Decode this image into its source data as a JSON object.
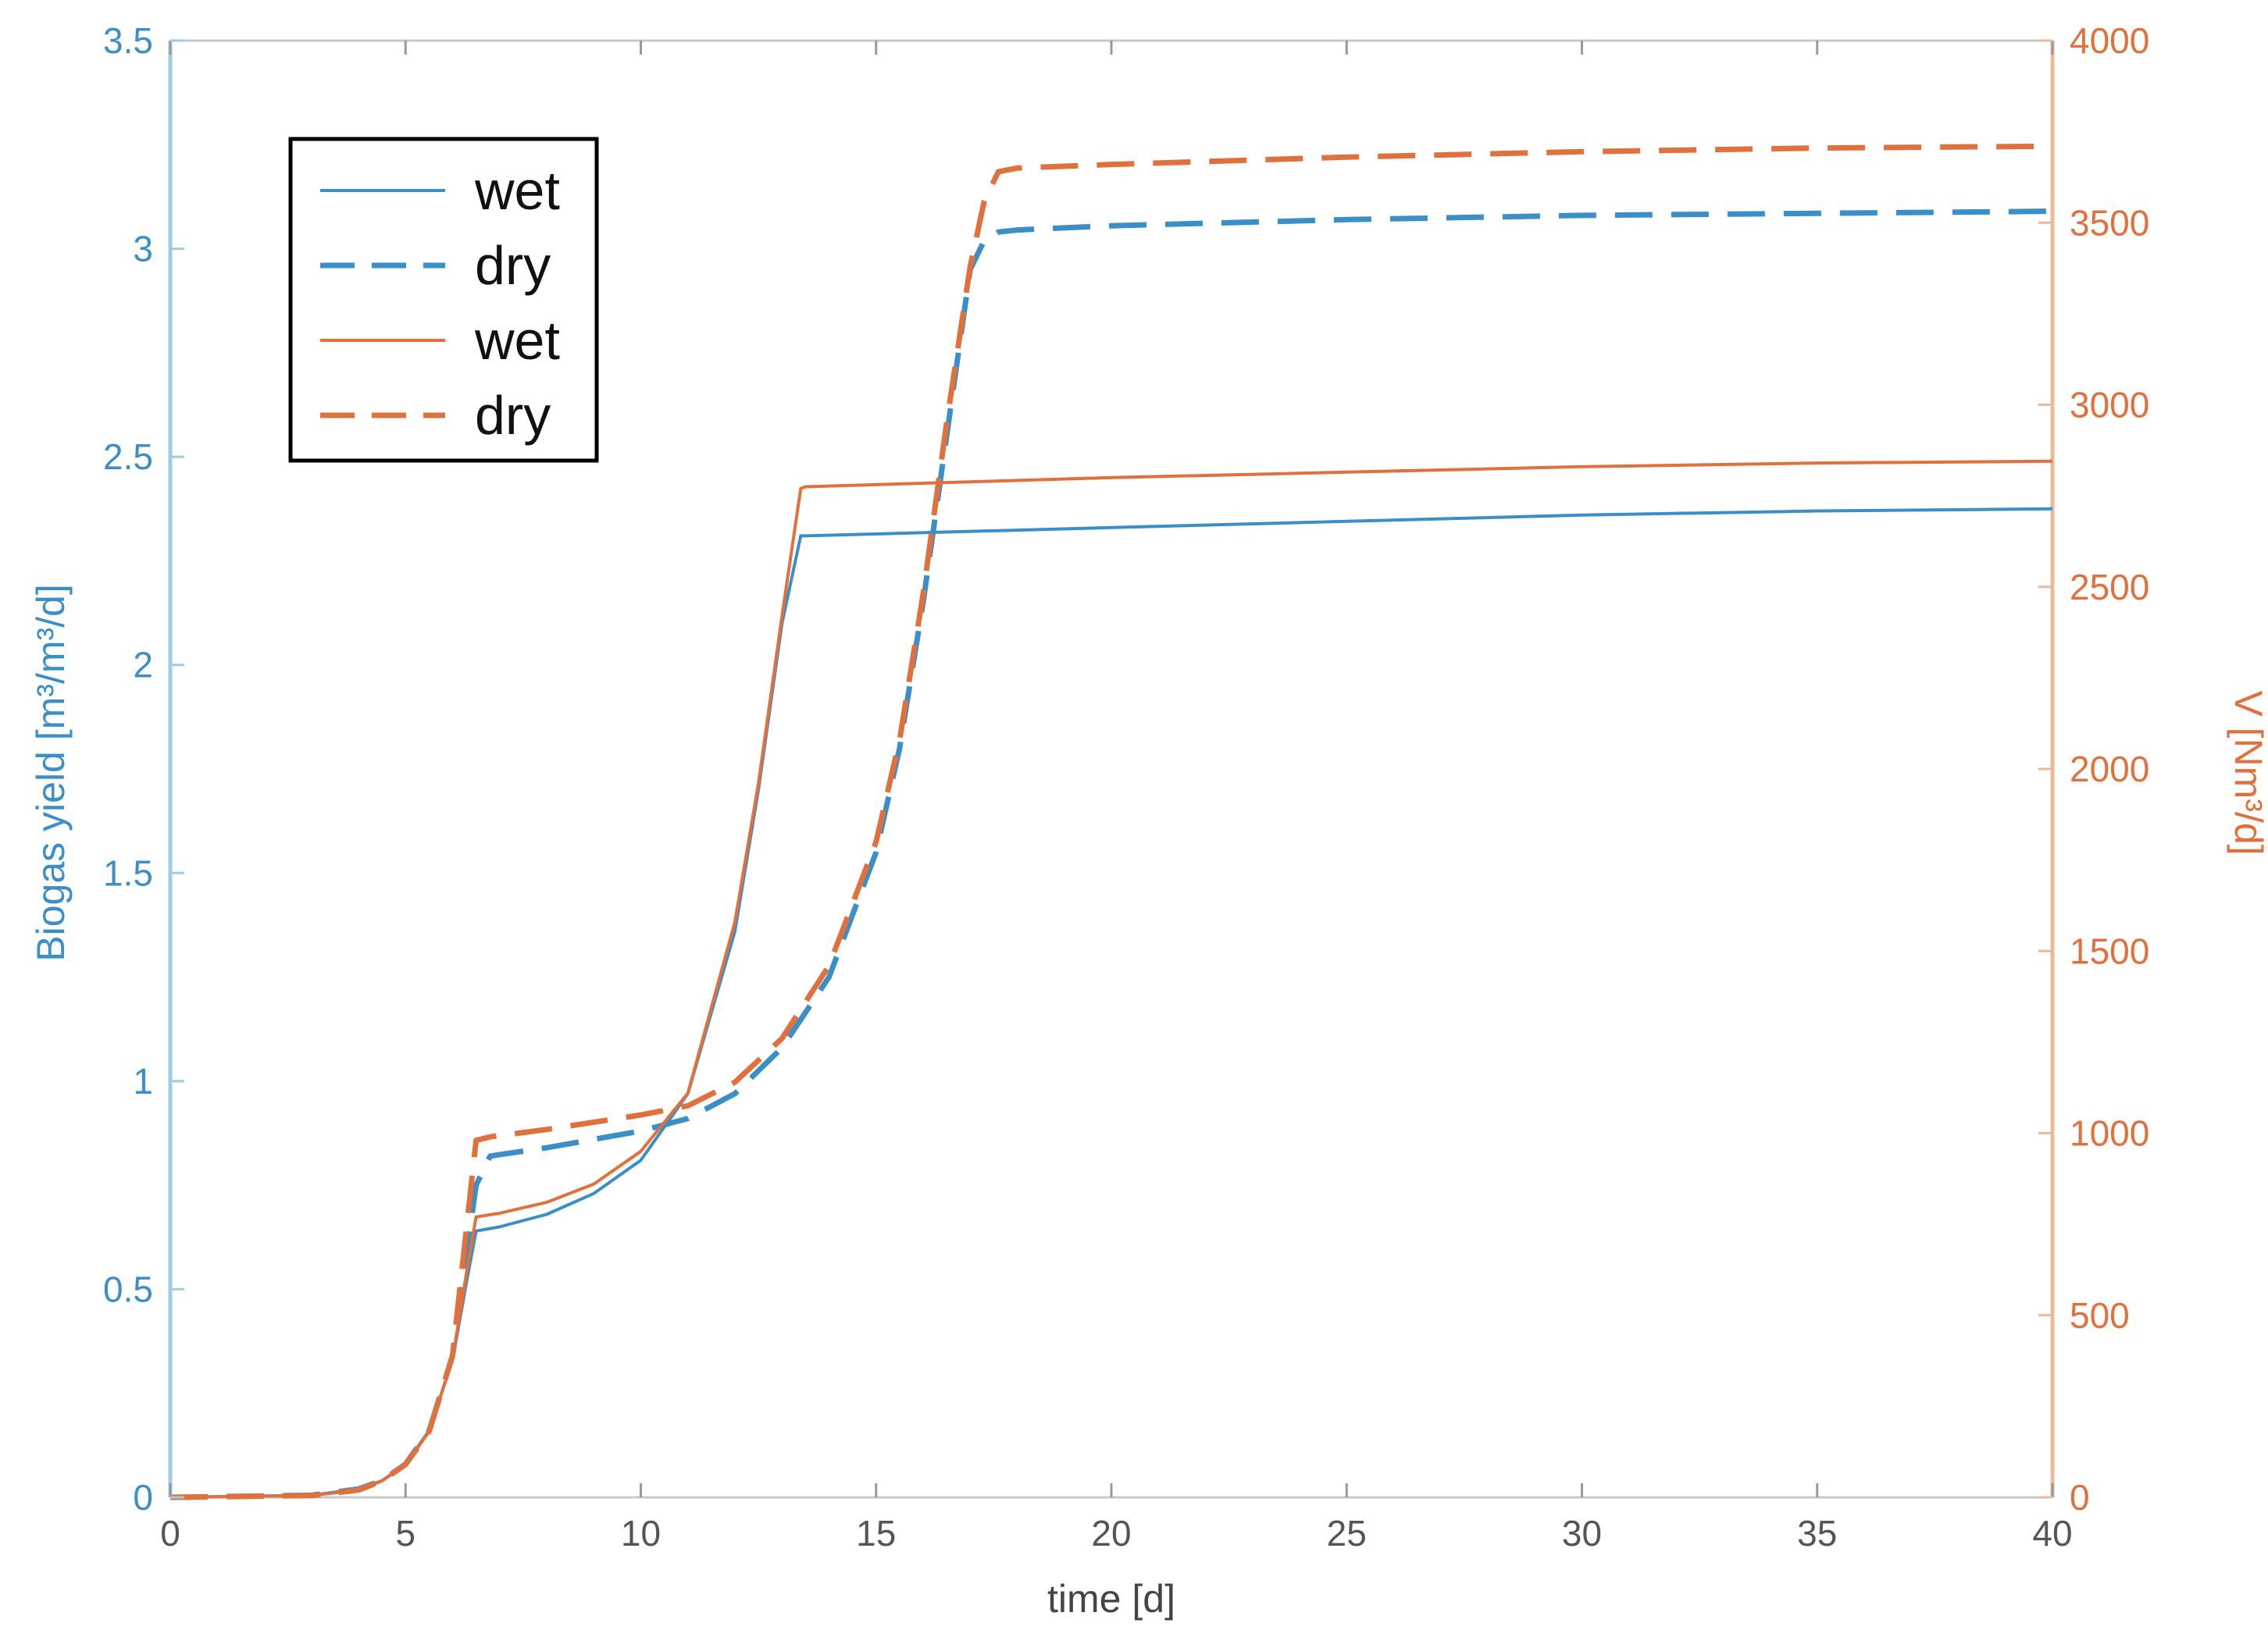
{
  "chart_data": {
    "type": "line",
    "xlabel": "time [d]",
    "ylabel_left": "Biogas yield [m³/m³/d]",
    "ylabel_right": "V [Nm³/d]",
    "xlim": [
      0,
      40
    ],
    "ylim_left": [
      0,
      3.5
    ],
    "ylim_right": [
      0,
      4000
    ],
    "x_ticks": [
      0,
      5,
      10,
      15,
      20,
      25,
      30,
      35,
      40
    ],
    "y_left_ticks": [
      0,
      0.5,
      1,
      1.5,
      2,
      2.5,
      3,
      3.5
    ],
    "y_right_ticks": [
      0,
      500,
      1000,
      1500,
      2000,
      2500,
      3000,
      3500,
      4000
    ],
    "grid": false,
    "legend_position": "top-left",
    "colors": {
      "blue": "#3a8fc9",
      "orange": "#e0703c",
      "left_axis": "#9ecbe6",
      "right_axis": "#ecb89a",
      "box": "#c8c8c8"
    },
    "series": [
      {
        "name": "wet",
        "axis": "left",
        "color": "#3a8fc9",
        "dash": "solid",
        "x": [
          0,
          3,
          4,
          4.5,
          5,
          5.5,
          6,
          6.3,
          6.5,
          7,
          8,
          9,
          10,
          11,
          12,
          12.5,
          13,
          13.4,
          13.5,
          20,
          25,
          30,
          35,
          40
        ],
        "y": [
          0,
          0.005,
          0.02,
          0.04,
          0.08,
          0.16,
          0.33,
          0.52,
          0.64,
          0.65,
          0.68,
          0.73,
          0.81,
          0.97,
          1.36,
          1.7,
          2.1,
          2.31,
          2.31,
          2.33,
          2.345,
          2.36,
          2.37,
          2.375
        ]
      },
      {
        "name": "dry",
        "axis": "left",
        "color": "#3a8fc9",
        "dash": "dashed",
        "x": [
          0,
          3,
          4,
          4.5,
          5,
          5.5,
          6,
          6.5,
          6.8,
          8,
          10,
          11,
          12,
          13,
          14,
          15,
          15.5,
          16,
          16.5,
          17,
          17.3,
          17.6,
          18,
          20,
          25,
          30,
          35,
          40
        ],
        "y": [
          0,
          0.005,
          0.02,
          0.04,
          0.08,
          0.16,
          0.34,
          0.75,
          0.82,
          0.84,
          0.88,
          0.91,
          0.97,
          1.08,
          1.25,
          1.55,
          1.8,
          2.15,
          2.55,
          2.95,
          3.02,
          3.04,
          3.045,
          3.055,
          3.07,
          3.08,
          3.085,
          3.09
        ]
      },
      {
        "name": "wet",
        "axis": "right",
        "color": "#e0703c",
        "dash": "solid",
        "x": [
          0,
          3,
          4,
          4.5,
          5,
          5.5,
          6,
          6.3,
          6.5,
          7,
          8,
          9,
          10,
          11,
          12,
          12.5,
          13,
          13.4,
          13.5,
          20,
          25,
          30,
          35,
          40
        ],
        "y": [
          0,
          5,
          20,
          45,
          90,
          180,
          380,
          620,
          770,
          780,
          810,
          860,
          950,
          1110,
          1580,
          1960,
          2420,
          2770,
          2775,
          2800,
          2815,
          2830,
          2840,
          2845
        ]
      },
      {
        "name": "dry",
        "axis": "right",
        "color": "#e0703c",
        "dash": "dashed",
        "x": [
          0,
          3,
          4,
          4.5,
          5,
          5.5,
          6,
          6.5,
          6.8,
          8,
          10,
          11,
          12,
          13,
          14,
          15,
          15.5,
          16,
          16.5,
          17,
          17.3,
          17.6,
          18,
          20,
          25,
          30,
          35,
          40
        ],
        "y": [
          0,
          5,
          20,
          45,
          90,
          180,
          390,
          980,
          990,
          1010,
          1050,
          1075,
          1140,
          1260,
          1460,
          1800,
          2080,
          2480,
          2950,
          3380,
          3560,
          3640,
          3650,
          3660,
          3680,
          3695,
          3705,
          3710
        ]
      }
    ]
  }
}
